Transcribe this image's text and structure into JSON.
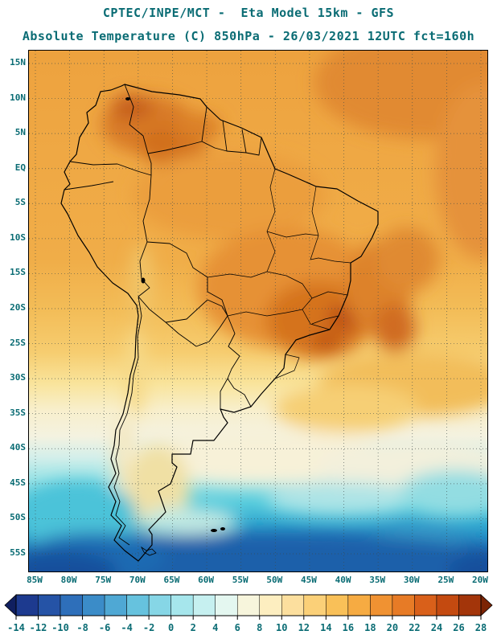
{
  "header": {
    "title_line1": "CPTEC/INPE/MCT -  Eta Model 15km - GFS",
    "title_line2": "Absolute Temperature (C) 850hPa - 26/03/2021 12UTC fct=160h"
  },
  "map": {
    "lat_labels": [
      "15N",
      "10N",
      "5N",
      "EQ",
      "5S",
      "10S",
      "15S",
      "20S",
      "25S",
      "30S",
      "35S",
      "40S",
      "45S",
      "50S",
      "55S"
    ],
    "lon_labels": [
      "85W",
      "80W",
      "75W",
      "70W",
      "65W",
      "60W",
      "55W",
      "50W",
      "45W",
      "40W",
      "35W",
      "30W",
      "25W",
      "20W"
    ]
  },
  "colorbar": {
    "tick_labels": [
      "-14",
      "-12",
      "-10",
      "-8",
      "-6",
      "-4",
      "-2",
      "0",
      "2",
      "4",
      "6",
      "8",
      "10",
      "12",
      "14",
      "16",
      "18",
      "20",
      "22",
      "24",
      "26",
      "28"
    ],
    "colors": [
      "#1d3a8f",
      "#2553a6",
      "#2e6fba",
      "#3b8cc8",
      "#4fa8d4",
      "#66c2de",
      "#86d6e6",
      "#a6e6ec",
      "#c6f0f0",
      "#e4f7f0",
      "#f7f5dc",
      "#fdeec0",
      "#fcdf9e",
      "#fbd078",
      "#f9c058",
      "#f6ab42",
      "#f09232",
      "#e77b26",
      "#d9601a",
      "#c44a10",
      "#a3350a"
    ],
    "left_arrow_color": "#101f60",
    "right_arrow_color": "#7c2404"
  },
  "colors": {
    "title_text": "#0a6c74",
    "axis_text": "#0a6c74"
  }
}
